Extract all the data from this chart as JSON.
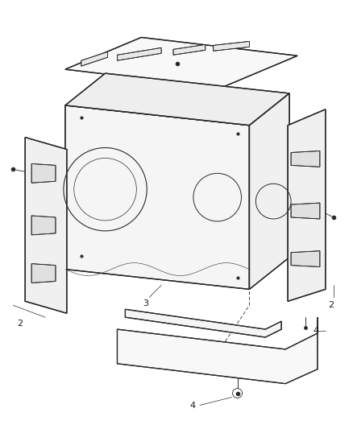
{
  "bg_color": "#ffffff",
  "line_color": "#2a2a2a",
  "label_color": "#1a1a1a",
  "figure_width": 4.38,
  "figure_height": 5.33,
  "dpi": 100
}
